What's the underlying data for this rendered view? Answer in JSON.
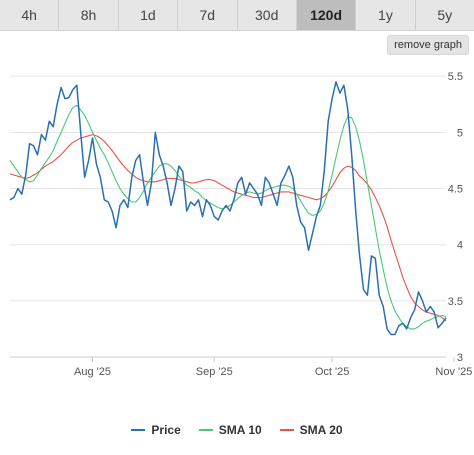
{
  "tabs": [
    {
      "label": "4h"
    },
    {
      "label": "8h"
    },
    {
      "label": "1d"
    },
    {
      "label": "7d"
    },
    {
      "label": "30d"
    },
    {
      "label": "120d",
      "active": true
    },
    {
      "label": "1y"
    },
    {
      "label": "5y"
    }
  ],
  "remove_graph_label": "remove graph",
  "colors": {
    "price": "#2a6fb0",
    "sma10": "#4cc77a",
    "sma20": "#e8534a",
    "grid": "#e6e6e6"
  },
  "chart_data": {
    "type": "line",
    "ylim": [
      3,
      5.6
    ],
    "y_ticks": [
      3,
      3.5,
      4,
      4.5,
      5,
      5.5
    ],
    "y_tick_labels": [
      "3",
      "3.5",
      "4",
      "4.5",
      "5",
      "5.5"
    ],
    "x_ticks": [
      {
        "label": "Aug '25",
        "index": 21
      },
      {
        "label": "Sep '25",
        "index": 52
      },
      {
        "label": "Oct '25",
        "index": 82
      },
      {
        "label": "Nov '25",
        "index": 113
      }
    ],
    "series": [
      {
        "name": "Price",
        "values": [
          4.4,
          4.42,
          4.5,
          4.45,
          4.62,
          4.9,
          4.88,
          4.8,
          4.98,
          4.93,
          5.1,
          5.05,
          5.25,
          5.4,
          5.3,
          5.31,
          5.38,
          5.42,
          5.0,
          4.6,
          4.75,
          4.95,
          4.72,
          4.6,
          4.4,
          4.38,
          4.3,
          4.15,
          4.35,
          4.4,
          4.33,
          4.6,
          4.75,
          4.8,
          4.55,
          4.35,
          4.55,
          5.0,
          4.8,
          4.7,
          4.55,
          4.35,
          4.5,
          4.7,
          4.65,
          4.3,
          4.38,
          4.35,
          4.4,
          4.25,
          4.4,
          4.35,
          4.25,
          4.22,
          4.3,
          4.35,
          4.3,
          4.4,
          4.55,
          4.6,
          4.45,
          4.55,
          4.5,
          4.45,
          4.35,
          4.6,
          4.55,
          4.45,
          4.35,
          4.55,
          4.62,
          4.7,
          4.6,
          4.35,
          4.2,
          4.15,
          3.95,
          4.1,
          4.25,
          4.35,
          4.65,
          5.1,
          5.3,
          5.45,
          5.35,
          5.42,
          5.2,
          4.8,
          4.3,
          3.9,
          3.6,
          3.55,
          3.9,
          3.88,
          3.55,
          3.45,
          3.25,
          3.2,
          3.2,
          3.28,
          3.3,
          3.25,
          3.35,
          3.42,
          3.58,
          3.5,
          3.4,
          3.45,
          3.4,
          3.26,
          3.3,
          3.35
        ]
      },
      {
        "name": "SMA 10",
        "values": [
          4.75,
          4.7,
          4.65,
          4.6,
          4.58,
          4.56,
          4.57,
          4.62,
          4.68,
          4.73,
          4.78,
          4.84,
          4.92,
          5.0,
          5.08,
          5.16,
          5.22,
          5.24,
          5.2,
          5.15,
          5.08,
          5.0,
          4.93,
          4.86,
          4.8,
          4.73,
          4.65,
          4.57,
          4.5,
          4.45,
          4.41,
          4.38,
          4.38,
          4.42,
          4.48,
          4.55,
          4.6,
          4.65,
          4.7,
          4.72,
          4.72,
          4.7,
          4.66,
          4.61,
          4.57,
          4.53,
          4.51,
          4.48,
          4.46,
          4.42,
          4.39,
          4.37,
          4.35,
          4.33,
          4.32,
          4.33,
          4.35,
          4.38,
          4.41,
          4.44,
          4.46,
          4.47,
          4.46,
          4.45,
          4.46,
          4.48,
          4.5,
          4.51,
          4.52,
          4.53,
          4.53,
          4.52,
          4.5,
          4.45,
          4.39,
          4.33,
          4.28,
          4.26,
          4.27,
          4.3,
          4.37,
          4.48,
          4.62,
          4.78,
          4.93,
          5.06,
          5.14,
          5.13,
          5.05,
          4.92,
          4.75,
          4.55,
          4.35,
          4.15,
          3.95,
          3.78,
          3.62,
          3.5,
          3.41,
          3.35,
          3.3,
          3.27,
          3.25,
          3.25,
          3.27,
          3.3,
          3.32,
          3.33,
          3.35,
          3.36,
          3.37,
          3.36
        ]
      },
      {
        "name": "SMA 20",
        "values": [
          4.63,
          4.62,
          4.61,
          4.6,
          4.59,
          4.6,
          4.62,
          4.64,
          4.67,
          4.7,
          4.72,
          4.74,
          4.77,
          4.8,
          4.84,
          4.88,
          4.91,
          4.93,
          4.95,
          4.96,
          4.97,
          4.98,
          4.97,
          4.95,
          4.92,
          4.88,
          4.84,
          4.79,
          4.74,
          4.7,
          4.66,
          4.63,
          4.6,
          4.58,
          4.57,
          4.56,
          4.56,
          4.56,
          4.57,
          4.58,
          4.59,
          4.59,
          4.59,
          4.58,
          4.57,
          4.56,
          4.55,
          4.55,
          4.56,
          4.57,
          4.58,
          4.58,
          4.57,
          4.55,
          4.53,
          4.51,
          4.49,
          4.47,
          4.46,
          4.45,
          4.44,
          4.43,
          4.42,
          4.42,
          4.42,
          4.43,
          4.44,
          4.45,
          4.46,
          4.47,
          4.47,
          4.47,
          4.46,
          4.45,
          4.44,
          4.43,
          4.42,
          4.41,
          4.4,
          4.41,
          4.43,
          4.47,
          4.52,
          4.58,
          4.64,
          4.68,
          4.7,
          4.69,
          4.66,
          4.61,
          4.58,
          4.54,
          4.49,
          4.42,
          4.35,
          4.26,
          4.16,
          4.04,
          3.93,
          3.82,
          3.71,
          3.62,
          3.54,
          3.48,
          3.45,
          3.42,
          3.4,
          3.39,
          3.38,
          3.37,
          3.35,
          3.32
        ]
      }
    ]
  },
  "legend": [
    {
      "label": "Price",
      "color_key": "price"
    },
    {
      "label": "SMA 10",
      "color_key": "sma10"
    },
    {
      "label": "SMA 20",
      "color_key": "sma20"
    }
  ]
}
